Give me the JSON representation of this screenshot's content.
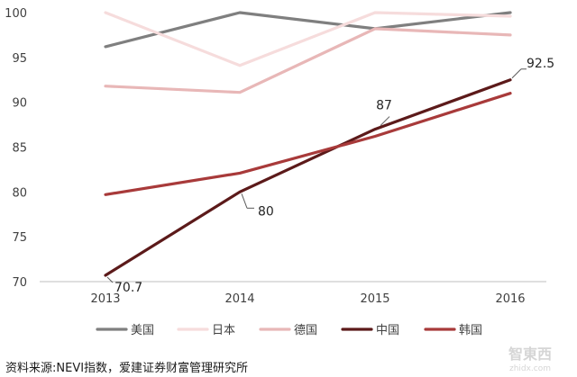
{
  "chart_data": {
    "type": "line",
    "x": [
      "2013",
      "2014",
      "2015",
      "2016"
    ],
    "ylim": [
      70,
      100
    ],
    "yticks": [
      70,
      75,
      80,
      85,
      90,
      95,
      100
    ],
    "grid": false,
    "legend_position": "bottom",
    "series": [
      {
        "name": "美国",
        "color": "#7f7f7f",
        "values": [
          96.2,
          100,
          98.2,
          100
        ]
      },
      {
        "name": "日本",
        "color": "#f6dcdc",
        "values": [
          100,
          94.1,
          100,
          99.6
        ]
      },
      {
        "name": "德国",
        "color": "#e8b7b7",
        "values": [
          91.8,
          91.1,
          98.2,
          97.5
        ]
      },
      {
        "name": "中国",
        "color": "#5c1a1a",
        "values": [
          70.7,
          80,
          87,
          92.5
        ]
      },
      {
        "name": "韩国",
        "color": "#a83a3a",
        "values": [
          79.7,
          82.1,
          86.2,
          91.0
        ]
      }
    ],
    "annotations": [
      {
        "series": "中国",
        "x": "2013",
        "text": "70.7"
      },
      {
        "series": "中国",
        "x": "2014",
        "text": "80"
      },
      {
        "series": "中国",
        "x": "2015",
        "text": "87"
      },
      {
        "series": "中国",
        "x": "2016",
        "text": "92.5"
      }
    ]
  },
  "footer": {
    "source": "资料来源:NEVI指数，爱建证券财富管理研究所"
  },
  "watermark": {
    "brand": "智东西",
    "url": "zhidx.com"
  }
}
